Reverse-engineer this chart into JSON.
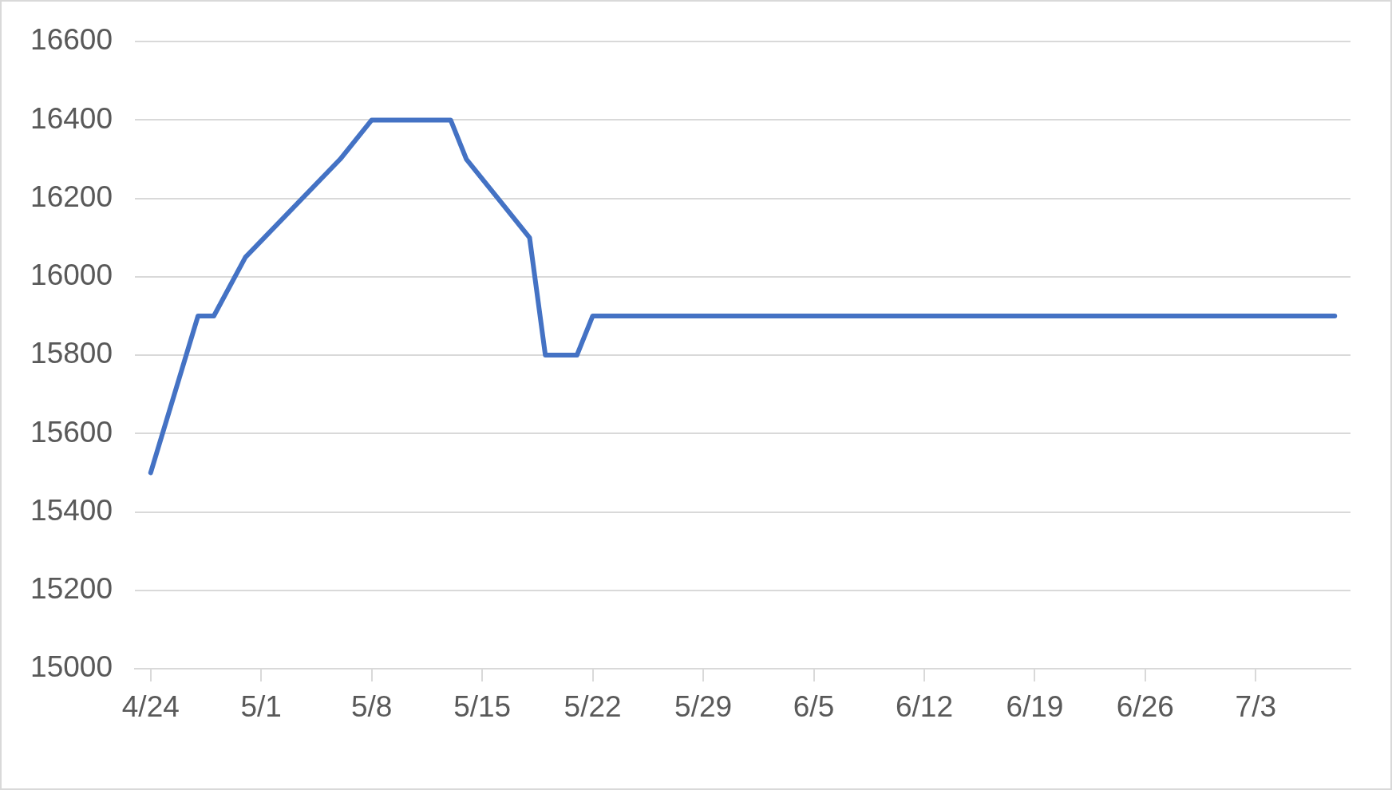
{
  "chart_data": {
    "type": "line",
    "x": [
      "--04-24",
      "--04-27",
      "--04-28",
      "--04-30",
      "--05-06",
      "--05-08",
      "--05-13",
      "--05-14",
      "--05-18",
      "--05-19",
      "--05-21",
      "--05-22",
      "--07-08"
    ],
    "values": [
      15500,
      15900,
      15900,
      16050,
      16300,
      16400,
      16400,
      16300,
      16100,
      15800,
      15800,
      15900,
      15900
    ],
    "color": "#4472c4",
    "xlim": [
      "--04-23",
      "--07-09"
    ],
    "xticks": [
      {
        "value": "--04-24",
        "label": "4/24"
      },
      {
        "value": "--05-01",
        "label": "5/1"
      },
      {
        "value": "--05-08",
        "label": "5/8"
      },
      {
        "value": "--05-15",
        "label": "5/15"
      },
      {
        "value": "--05-22",
        "label": "5/22"
      },
      {
        "value": "--05-29",
        "label": "5/29"
      },
      {
        "value": "--06-05",
        "label": "6/5"
      },
      {
        "value": "--06-12",
        "label": "6/12"
      },
      {
        "value": "--06-19",
        "label": "6/19"
      },
      {
        "value": "--06-26",
        "label": "6/26"
      },
      {
        "value": "--07-03",
        "label": "7/3"
      }
    ],
    "ylim": [
      15000,
      16600
    ],
    "yticks": [
      15000,
      15200,
      15400,
      15600,
      15800,
      16000,
      16200,
      16400,
      16600
    ],
    "grid": "y"
  }
}
